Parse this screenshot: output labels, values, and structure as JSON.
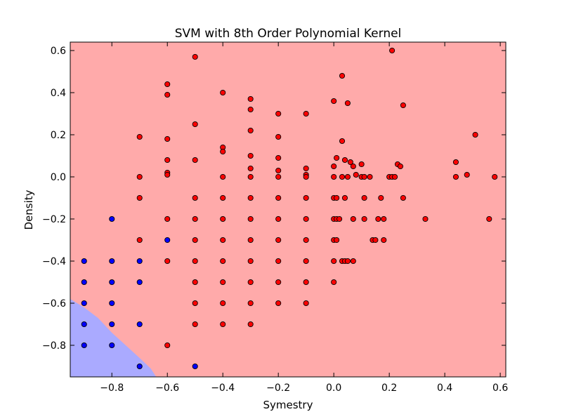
{
  "chart_data": {
    "type": "scatter",
    "title": "SVM with 8th Order Polynomial Kernel",
    "xlabel": "Symestry",
    "ylabel": "Density",
    "xlim": [
      -0.95,
      0.62
    ],
    "ylim": [
      -0.95,
      0.64
    ],
    "xticks": [
      -0.8,
      -0.6,
      -0.4,
      -0.2,
      0.0,
      0.2,
      0.4,
      0.6
    ],
    "yticks": [
      -0.8,
      -0.6,
      -0.4,
      -0.2,
      0.0,
      0.2,
      0.4,
      0.6
    ],
    "xtick_labels": [
      "−0.8",
      "−0.6",
      "−0.4",
      "−0.2",
      "0.0",
      "0.2",
      "0.4",
      "0.6"
    ],
    "ytick_labels": [
      "−0.8",
      "−0.6",
      "−0.4",
      "−0.2",
      "0.0",
      "0.2",
      "0.4",
      "0.6"
    ],
    "grid": false,
    "regions": {
      "background_class": "red",
      "colors": {
        "red": "#ffaaaa",
        "blue": "#aaaaff"
      },
      "blue_boundary": [
        [
          -0.95,
          -0.58
        ],
        [
          -0.9,
          -0.62
        ],
        [
          -0.85,
          -0.67
        ],
        [
          -0.8,
          -0.74
        ],
        [
          -0.75,
          -0.8
        ],
        [
          -0.7,
          -0.86
        ],
        [
          -0.66,
          -0.91
        ],
        [
          -0.64,
          -0.95
        ],
        [
          -0.95,
          -0.95
        ]
      ]
    },
    "series": [
      {
        "color": "#ff0000",
        "points": [
          [
            -0.5,
            0.57
          ],
          [
            -0.6,
            0.44
          ],
          [
            -0.6,
            0.39
          ],
          [
            -0.5,
            0.25
          ],
          [
            -0.7,
            0.19
          ],
          [
            -0.6,
            0.18
          ],
          [
            -0.6,
            0.08
          ],
          [
            -0.6,
            0.02
          ],
          [
            -0.6,
            0.01
          ],
          [
            -0.7,
            0.0
          ],
          [
            -0.7,
            -0.1
          ],
          [
            -0.6,
            -0.2
          ],
          [
            -0.7,
            -0.3
          ],
          [
            -0.6,
            -0.4
          ],
          [
            -0.6,
            -0.8
          ],
          [
            -0.5,
            0.08
          ],
          [
            -0.5,
            -0.1
          ],
          [
            -0.5,
            -0.2
          ],
          [
            -0.5,
            -0.3
          ],
          [
            -0.5,
            -0.4
          ],
          [
            -0.5,
            -0.5
          ],
          [
            -0.5,
            -0.6
          ],
          [
            -0.5,
            -0.7
          ],
          [
            -0.4,
            0.4
          ],
          [
            -0.4,
            0.14
          ],
          [
            -0.4,
            0.12
          ],
          [
            -0.4,
            0.0
          ],
          [
            -0.4,
            -0.1
          ],
          [
            -0.4,
            -0.2
          ],
          [
            -0.4,
            -0.3
          ],
          [
            -0.4,
            -0.4
          ],
          [
            -0.4,
            -0.5
          ],
          [
            -0.4,
            -0.6
          ],
          [
            -0.4,
            -0.7
          ],
          [
            -0.3,
            0.37
          ],
          [
            -0.3,
            0.32
          ],
          [
            -0.3,
            0.22
          ],
          [
            -0.3,
            0.1
          ],
          [
            -0.3,
            0.04
          ],
          [
            -0.3,
            0.0
          ],
          [
            -0.3,
            -0.1
          ],
          [
            -0.3,
            -0.2
          ],
          [
            -0.3,
            -0.3
          ],
          [
            -0.3,
            -0.4
          ],
          [
            -0.3,
            -0.5
          ],
          [
            -0.3,
            -0.6
          ],
          [
            -0.3,
            -0.7
          ],
          [
            -0.2,
            0.3
          ],
          [
            -0.2,
            0.19
          ],
          [
            -0.2,
            0.09
          ],
          [
            -0.2,
            0.03
          ],
          [
            -0.2,
            0.0
          ],
          [
            -0.2,
            -0.1
          ],
          [
            -0.2,
            -0.2
          ],
          [
            -0.2,
            -0.3
          ],
          [
            -0.2,
            -0.4
          ],
          [
            -0.2,
            -0.5
          ],
          [
            -0.2,
            -0.6
          ],
          [
            -0.1,
            0.3
          ],
          [
            -0.1,
            0.04
          ],
          [
            -0.1,
            0.01
          ],
          [
            -0.1,
            0.0
          ],
          [
            -0.1,
            -0.1
          ],
          [
            -0.1,
            -0.2
          ],
          [
            -0.1,
            -0.3
          ],
          [
            -0.1,
            -0.4
          ],
          [
            -0.1,
            -0.5
          ],
          [
            -0.1,
            -0.6
          ],
          [
            0.0,
            0.36
          ],
          [
            0.0,
            0.05
          ],
          [
            0.0,
            0.0
          ],
          [
            0.0,
            -0.1
          ],
          [
            0.0,
            -0.2
          ],
          [
            0.0,
            -0.3
          ],
          [
            0.0,
            -0.4
          ],
          [
            0.0,
            -0.5
          ],
          [
            0.01,
            0.09
          ],
          [
            0.01,
            -0.1
          ],
          [
            0.01,
            -0.2
          ],
          [
            0.01,
            -0.3
          ],
          [
            0.02,
            -0.2
          ],
          [
            0.03,
            0.48
          ],
          [
            0.03,
            0.17
          ],
          [
            0.03,
            0.0
          ],
          [
            0.03,
            -0.4
          ],
          [
            0.04,
            0.08
          ],
          [
            0.04,
            -0.1
          ],
          [
            0.04,
            -0.4
          ],
          [
            0.05,
            0.35
          ],
          [
            0.05,
            0.0
          ],
          [
            0.05,
            -0.4
          ],
          [
            0.06,
            0.07
          ],
          [
            0.07,
            0.05
          ],
          [
            0.07,
            -0.2
          ],
          [
            0.07,
            -0.4
          ],
          [
            0.08,
            0.01
          ],
          [
            0.1,
            0.06
          ],
          [
            0.1,
            0.0
          ],
          [
            0.11,
            0.0
          ],
          [
            0.11,
            -0.1
          ],
          [
            0.11,
            -0.2
          ],
          [
            0.13,
            0.0
          ],
          [
            0.14,
            -0.3
          ],
          [
            0.15,
            -0.3
          ],
          [
            0.16,
            -0.2
          ],
          [
            0.17,
            -0.1
          ],
          [
            0.18,
            -0.2
          ],
          [
            0.18,
            -0.3
          ],
          [
            0.2,
            0.0
          ],
          [
            0.21,
            0.0
          ],
          [
            0.21,
            0.6
          ],
          [
            0.22,
            0.0
          ],
          [
            0.23,
            0.06
          ],
          [
            0.24,
            0.05
          ],
          [
            0.25,
            0.34
          ],
          [
            0.25,
            -0.1
          ],
          [
            0.33,
            -0.2
          ],
          [
            0.44,
            0.07
          ],
          [
            0.44,
            0.0
          ],
          [
            0.48,
            0.01
          ],
          [
            0.51,
            0.2
          ],
          [
            0.56,
            -0.2
          ],
          [
            0.58,
            0.0
          ]
        ]
      },
      {
        "color": "#0000ff",
        "points": [
          [
            -0.8,
            -0.2
          ],
          [
            -0.9,
            -0.4
          ],
          [
            -0.8,
            -0.4
          ],
          [
            -0.7,
            -0.4
          ],
          [
            -0.6,
            -0.3
          ],
          [
            -0.9,
            -0.5
          ],
          [
            -0.8,
            -0.5
          ],
          [
            -0.7,
            -0.5
          ],
          [
            -0.9,
            -0.6
          ],
          [
            -0.8,
            -0.6
          ],
          [
            -0.9,
            -0.7
          ],
          [
            -0.8,
            -0.7
          ],
          [
            -0.7,
            -0.7
          ],
          [
            -0.9,
            -0.8
          ],
          [
            -0.8,
            -0.8
          ],
          [
            -0.7,
            -0.9
          ],
          [
            -0.5,
            -0.9
          ]
        ]
      }
    ]
  }
}
